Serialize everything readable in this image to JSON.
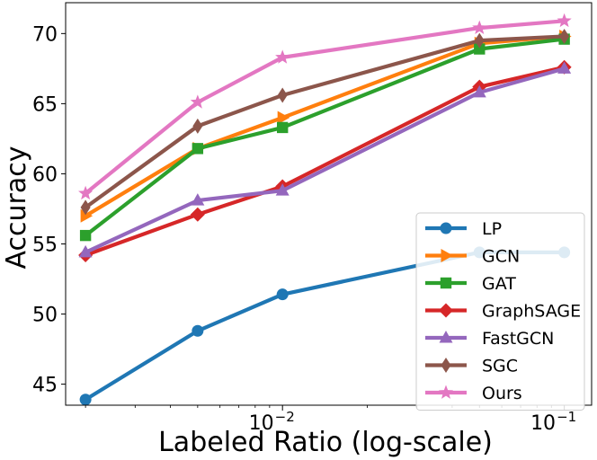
{
  "chart_data": {
    "type": "line",
    "x_scale": "log",
    "xlabel": "Labeled Ratio (log-scale)",
    "ylabel": "Accuracy",
    "xlim": [
      0.0017,
      0.125
    ],
    "ylim": [
      43.5,
      72.2
    ],
    "x": [
      0.002,
      0.005,
      0.01,
      0.05,
      0.1
    ],
    "x_ticks": [
      {
        "value": 0.01,
        "base": "10",
        "exp": "−2"
      },
      {
        "value": 0.1,
        "base": "10",
        "exp": "−1"
      }
    ],
    "y_ticks": [
      45,
      50,
      55,
      60,
      65,
      70
    ],
    "grid": false,
    "legend_position": "bottom-right",
    "series": [
      {
        "name": "LP",
        "color": "#1f77b4",
        "marker": "circle",
        "values": [
          43.9,
          48.8,
          51.4,
          54.4,
          54.4
        ]
      },
      {
        "name": "GCN",
        "color": "#ff7f0e",
        "marker": "triangle-right",
        "values": [
          57.0,
          61.8,
          64.0,
          69.3,
          69.8
        ]
      },
      {
        "name": "GAT",
        "color": "#2ca02c",
        "marker": "square",
        "values": [
          55.6,
          61.8,
          63.3,
          68.9,
          69.6
        ]
      },
      {
        "name": "GraphSAGE",
        "color": "#d62728",
        "marker": "diamond",
        "values": [
          54.2,
          57.1,
          59.1,
          66.2,
          67.6
        ]
      },
      {
        "name": "FastGCN",
        "color": "#9467bd",
        "marker": "triangle-up",
        "values": [
          54.4,
          58.1,
          58.8,
          65.8,
          67.5
        ]
      },
      {
        "name": "SGC",
        "color": "#8c564b",
        "marker": "thin-diamond",
        "values": [
          57.6,
          63.4,
          65.6,
          69.5,
          69.8
        ]
      },
      {
        "name": "Ours",
        "color": "#e377c2",
        "marker": "star",
        "values": [
          58.6,
          65.1,
          68.3,
          70.4,
          70.9
        ]
      }
    ]
  }
}
